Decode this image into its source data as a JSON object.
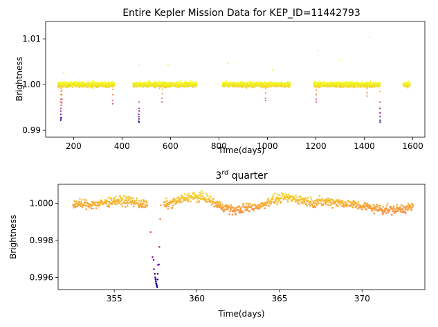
{
  "chart_data": [
    {
      "type": "scatter",
      "title": "Entire Kepler Mission Data for KEP_ID=11442793",
      "xlabel": "Time(days)",
      "ylabel": "Brightness",
      "xlim": [
        85,
        1650
      ],
      "ylim": [
        0.9885,
        1.0138
      ],
      "xticks": [
        200,
        400,
        600,
        800,
        1000,
        1200,
        1400,
        1600
      ],
      "xtick_labels": [
        "200",
        "400",
        "600",
        "800",
        "1000",
        "1200",
        "1400",
        "1600"
      ],
      "yticks": [
        0.99,
        1.0,
        1.01
      ],
      "ytick_labels": [
        "0.99",
        "1.00",
        "1.01"
      ],
      "colormap": "plasma",
      "marker_size": "small",
      "grid": false,
      "series": [
        {
          "segments": [
            [
              135,
              370
            ],
            [
              445,
              710
            ],
            [
              815,
              1095
            ],
            [
              1190,
              1465
            ],
            [
              1560,
              1590
            ]
          ],
          "baseline": 1.0,
          "scatter": 0.0006,
          "transits": [
            {
              "x": 148,
              "y": [
                0.9992,
                0.9985,
                0.9978,
                0.9968,
                0.9962,
                0.9955,
                0.9948,
                0.9942,
                0.9935,
                0.9928,
                0.9925,
                0.9922
              ]
            },
            {
              "x": 152,
              "y": [
                0.9995,
                0.9988,
                0.9978,
                0.9968,
                0.996
              ]
            },
            {
              "x": 362,
              "y": [
                0.9998,
                0.999,
                0.9978,
                0.9965,
                0.9958
              ]
            },
            {
              "x": 470,
              "y": [
                0.9962,
                0.9948,
                0.9942,
                0.9935,
                0.993,
                0.9925,
                0.992,
                0.9918
              ]
            },
            {
              "x": 566,
              "y": [
                0.9998,
                0.999,
                0.998,
                0.997,
                0.9962
              ]
            },
            {
              "x": 993,
              "y": [
                0.9992,
                0.9982,
                0.997,
                0.9965
              ]
            },
            {
              "x": 1202,
              "y": [
                0.9995,
                0.9988,
                0.9978,
                0.9968,
                0.9962
              ]
            },
            {
              "x": 1412,
              "y": [
                0.9998,
                0.9992,
                0.9982,
                0.9975
              ]
            },
            {
              "x": 1465,
              "y": [
                0.9985,
                0.9962,
                0.9948,
                0.9938,
                0.993,
                0.9922,
                0.9918
              ]
            }
          ],
          "outliers": [
            {
              "x": 160,
              "y": 1.0026
            },
            {
              "x": 472,
              "y": 1.0043
            },
            {
              "x": 590,
              "y": 1.0044
            },
            {
              "x": 837,
              "y": 1.0047
            },
            {
              "x": 1022,
              "y": 1.0032
            },
            {
              "x": 1208,
              "y": 1.0074
            },
            {
              "x": 1302,
              "y": 1.0055
            },
            {
              "x": 1422,
              "y": 1.0104
            }
          ]
        }
      ]
    },
    {
      "type": "scatter",
      "title_main": "3",
      "title_sup": "rd",
      "title_tail": " quarter",
      "xlabel": "Time(days)",
      "ylabel": "Brightness",
      "xlim": [
        351.6,
        373.8
      ],
      "ylim": [
        0.99535,
        1.00102
      ],
      "xticks": [
        355,
        360,
        365,
        370
      ],
      "xtick_labels": [
        "355",
        "360",
        "365",
        "370"
      ],
      "yticks": [
        0.996,
        0.998,
        1.0
      ],
      "ytick_labels": [
        "0.996",
        "0.998",
        "1.000"
      ],
      "colormap": "plasma",
      "marker_size": "small",
      "grid": false,
      "series": [
        {
          "range": [
            352.5,
            373.1
          ],
          "trend": [
            [
              352.5,
              0.99995
            ],
            [
              354.0,
              0.99995
            ],
            [
              355.0,
              1.00015
            ],
            [
              356.0,
              1.0001
            ],
            [
              357.0,
              0.9999
            ],
            [
              358.3,
              0.99995
            ],
            [
              359.5,
              1.00035
            ],
            [
              360.5,
              1.0003
            ],
            [
              361.3,
              0.9999
            ],
            [
              362.3,
              0.9996
            ],
            [
              363.0,
              0.99975
            ],
            [
              363.8,
              0.99985
            ],
            [
              364.5,
              1.00015
            ],
            [
              365.2,
              1.0003
            ],
            [
              366.0,
              1.00025
            ],
            [
              367.0,
              1.00005
            ],
            [
              368.0,
              1.0001
            ],
            [
              369.0,
              1.0
            ],
            [
              370.0,
              0.99985
            ],
            [
              371.0,
              0.9997
            ],
            [
              372.0,
              0.99965
            ],
            [
              373.1,
              0.9998
            ]
          ],
          "scatter": 0.00012,
          "transit_window": [
            357.0,
            358.0
          ],
          "transit": [
            [
              357.2,
              0.99845
            ],
            [
              357.32,
              0.9971
            ],
            [
              357.38,
              0.99695
            ],
            [
              357.4,
              0.99645
            ],
            [
              357.45,
              0.9962
            ],
            [
              357.48,
              0.996
            ],
            [
              357.5,
              0.9959
            ],
            [
              357.52,
              0.9958
            ],
            [
              357.53,
              0.9957
            ],
            [
              357.55,
              0.99565
            ],
            [
              357.56,
              0.9956
            ],
            [
              357.58,
              0.99555
            ],
            [
              357.6,
              0.99548
            ],
            [
              357.62,
              0.9959
            ],
            [
              357.63,
              0.9962
            ],
            [
              357.65,
              0.99668
            ],
            [
              357.7,
              0.9967
            ],
            [
              357.73,
              0.99765
            ],
            [
              357.78,
              0.99915
            ],
            [
              357.82,
              0.9999
            ]
          ]
        }
      ]
    }
  ]
}
